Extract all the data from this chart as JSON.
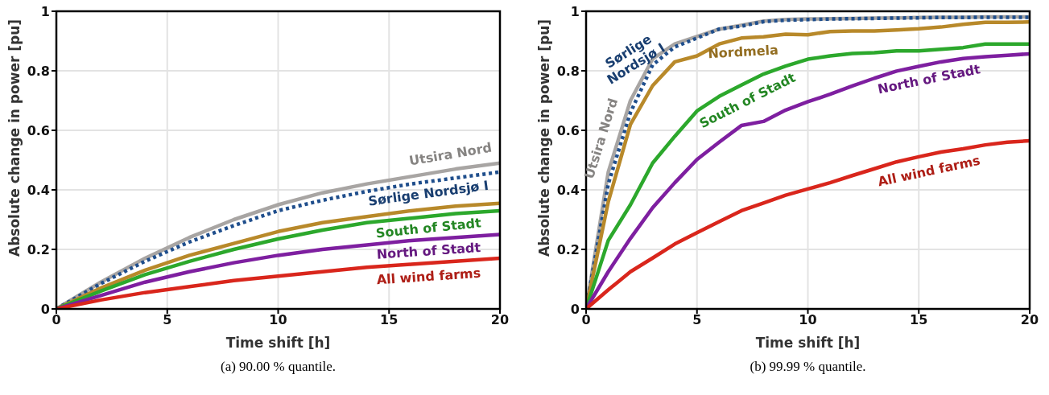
{
  "chart_data": [
    {
      "type": "line",
      "annotations": [
        "(a) 90.00 % quantile."
      ],
      "xlabel": "Time shift [h]",
      "ylabel": "Absolute change in power [pu]",
      "xlim": [
        0,
        20
      ],
      "xticks": [
        0,
        5,
        10,
        15,
        20
      ],
      "ylim": [
        0,
        1
      ],
      "yticks": [
        0,
        0.2,
        0.4,
        0.6,
        0.8,
        1
      ],
      "grid": true,
      "line_style": "solid",
      "x": [
        0,
        2,
        4,
        6,
        8,
        10,
        12,
        14,
        16,
        18,
        20
      ],
      "series": [
        {
          "name": "Utsira Nord",
          "color": "#a8a5a3",
          "values": [
            0,
            0.09,
            0.17,
            0.24,
            0.3,
            0.35,
            0.39,
            0.42,
            0.445,
            0.47,
            0.49
          ]
        },
        {
          "name": "Sørlige Nordsjø I",
          "color": "#1f4e8c",
          "line_style": "dotted",
          "values": [
            0,
            0.085,
            0.16,
            0.225,
            0.28,
            0.33,
            0.365,
            0.395,
            0.42,
            0.44,
            0.46
          ]
        },
        {
          "color": "#b8892a",
          "values": [
            0,
            0.07,
            0.13,
            0.18,
            0.22,
            0.26,
            0.29,
            0.31,
            0.33,
            0.345,
            0.355
          ]
        },
        {
          "name": "South of Stadt",
          "color": "#2ca82c",
          "values": [
            0,
            0.06,
            0.115,
            0.16,
            0.2,
            0.235,
            0.265,
            0.29,
            0.305,
            0.32,
            0.33
          ]
        },
        {
          "name": "North of Stadt",
          "color": "#7e1fa0",
          "values": [
            0,
            0.045,
            0.09,
            0.125,
            0.155,
            0.18,
            0.2,
            0.215,
            0.23,
            0.24,
            0.25
          ]
        },
        {
          "name": "All wind farms",
          "color": "#d9261c",
          "values": [
            0,
            0.03,
            0.055,
            0.075,
            0.095,
            0.11,
            0.125,
            0.14,
            0.15,
            0.16,
            0.17
          ]
        }
      ]
    },
    {
      "type": "line",
      "annotations": [
        "(b) 99.99 % quantile."
      ],
      "xlabel": "Time shift [h]",
      "ylabel": "Absolute change in power [pu]",
      "xlim": [
        0,
        20
      ],
      "xticks": [
        0,
        5,
        10,
        15,
        20
      ],
      "ylim": [
        0,
        1
      ],
      "yticks": [
        0,
        0.2,
        0.4,
        0.6,
        0.8,
        1
      ],
      "grid": true,
      "line_style": "solid",
      "x": [
        0,
        1,
        2,
        3,
        4,
        5,
        6,
        7,
        8,
        9,
        10,
        11,
        12,
        13,
        14,
        15,
        16,
        17,
        18,
        19,
        20
      ],
      "series": [
        {
          "name": "Utsira Nord",
          "color": "#a8a5a3",
          "values": [
            0,
            0.46,
            0.7,
            0.84,
            0.89,
            0.915,
            0.94,
            0.953,
            0.967,
            0.972,
            0.974,
            0.975,
            0.976,
            0.977,
            0.978,
            0.979,
            0.98,
            0.98,
            0.981,
            0.981,
            0.981
          ]
        },
        {
          "name": "Sørlige Nordsjø I",
          "color": "#1f4e8c",
          "line_style": "dotted",
          "values": [
            0,
            0.42,
            0.66,
            0.82,
            0.88,
            0.91,
            0.94,
            0.95,
            0.965,
            0.97,
            0.972,
            0.974,
            0.975,
            0.976,
            0.977,
            0.978,
            0.979,
            0.979,
            0.98,
            0.98,
            0.98
          ]
        },
        {
          "name": "Nordmela",
          "color": "#b8892a",
          "values": [
            0,
            0.36,
            0.62,
            0.75,
            0.83,
            0.85,
            0.89,
            0.91,
            0.914,
            0.923,
            0.921,
            0.932,
            0.934,
            0.934,
            0.937,
            0.941,
            0.947,
            0.956,
            0.963,
            0.963,
            0.964
          ]
        },
        {
          "name": "South of Stadt",
          "color": "#2ca82c",
          "values": [
            0,
            0.23,
            0.35,
            0.49,
            0.58,
            0.665,
            0.714,
            0.752,
            0.789,
            0.816,
            0.839,
            0.85,
            0.858,
            0.861,
            0.867,
            0.867,
            0.872,
            0.878,
            0.89,
            0.89,
            0.89
          ]
        },
        {
          "name": "North of Stadt",
          "color": "#7e1fa0",
          "values": [
            0,
            0.125,
            0.237,
            0.34,
            0.424,
            0.502,
            0.56,
            0.616,
            0.63,
            0.668,
            0.696,
            0.721,
            0.749,
            0.775,
            0.799,
            0.815,
            0.83,
            0.841,
            0.847,
            0.852,
            0.857
          ]
        },
        {
          "name": "All wind farms",
          "color": "#d9261c",
          "values": [
            0,
            0.064,
            0.125,
            0.171,
            0.218,
            0.256,
            0.293,
            0.33,
            0.356,
            0.382,
            0.403,
            0.424,
            0.448,
            0.471,
            0.494,
            0.511,
            0.527,
            0.538,
            0.551,
            0.56,
            0.565
          ]
        }
      ]
    }
  ]
}
